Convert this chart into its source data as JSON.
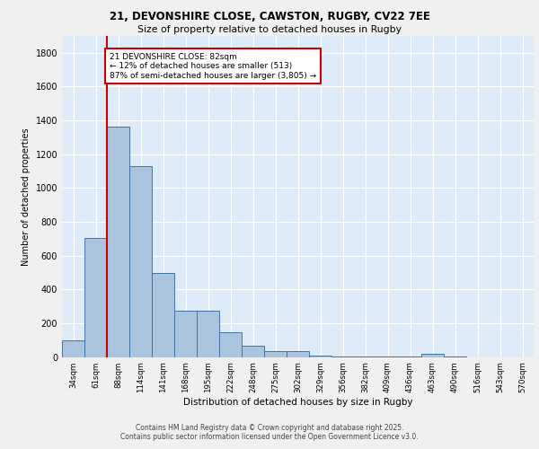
{
  "title_line1": "21, DEVONSHIRE CLOSE, CAWSTON, RUGBY, CV22 7EE",
  "title_line2": "Size of property relative to detached houses in Rugby",
  "xlabel": "Distribution of detached houses by size in Rugby",
  "ylabel": "Number of detached properties",
  "bar_color": "#aac4e0",
  "bar_edge_color": "#4472a8",
  "bg_color": "#ddeaf8",
  "grid_color": "#ffffff",
  "categories": [
    "34sqm",
    "61sqm",
    "88sqm",
    "114sqm",
    "141sqm",
    "168sqm",
    "195sqm",
    "222sqm",
    "248sqm",
    "275sqm",
    "302sqm",
    "329sqm",
    "356sqm",
    "382sqm",
    "409sqm",
    "436sqm",
    "463sqm",
    "490sqm",
    "516sqm",
    "543sqm",
    "570sqm"
  ],
  "values": [
    97,
    706,
    1365,
    1130,
    497,
    275,
    275,
    147,
    68,
    35,
    32,
    8,
    5,
    3,
    3,
    3,
    18,
    2,
    0,
    0,
    0
  ],
  "annotation_text": "21 DEVONSHIRE CLOSE: 82sqm\n← 12% of detached houses are smaller (513)\n87% of semi-detached houses are larger (3,805) →",
  "annotation_box_color": "#ffffff",
  "annotation_box_edge": "#cc0000",
  "red_line_color": "#cc0000",
  "footer_line1": "Contains HM Land Registry data © Crown copyright and database right 2025.",
  "footer_line2": "Contains public sector information licensed under the Open Government Licence v3.0.",
  "ylim": [
    0,
    1900
  ],
  "yticks": [
    0,
    200,
    400,
    600,
    800,
    1000,
    1200,
    1400,
    1600,
    1800
  ],
  "fig_bg": "#f0f0f0"
}
